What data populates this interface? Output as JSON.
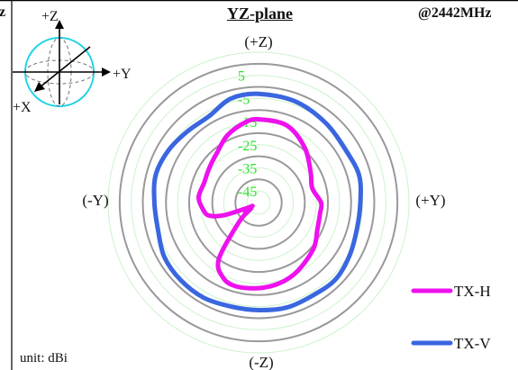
{
  "header": {
    "title": "YZ-plane",
    "frequency": "@2442MHz",
    "unit": "unit: dBi",
    "left_edge_fragment": "z"
  },
  "axis_icon": {
    "plus_z": "+Z",
    "plus_y": "+Y",
    "plus_x": "+X",
    "sphere_color": "#22d3e6"
  },
  "chart_data": {
    "type": "polar-line",
    "title": "YZ-plane",
    "unit": "dBi",
    "direction_labels": {
      "top": "(+Z)",
      "bottom": "(-Z)",
      "left": "(-Y)",
      "right": "(+Y)"
    },
    "radial_ticks": [
      "5",
      "-5",
      "-15",
      "-25",
      "-35",
      "-45"
    ],
    "radial_tick_values": [
      5,
      -5,
      -15,
      -25,
      -35,
      -45
    ],
    "r_min": -50,
    "r_max": 15,
    "angle_unit": "degrees clockwise from +Z",
    "colors": {
      "major_ring": "#999999",
      "minor_ring": "#ccf2cc",
      "tick_label": "#2ee02e"
    },
    "series": [
      {
        "name": "TX-H",
        "color": "#ee11ee",
        "points": [
          [
            0,
            -14
          ],
          [
            20,
            -14.5
          ],
          [
            40,
            -19
          ],
          [
            60,
            -24
          ],
          [
            75,
            -26
          ],
          [
            90,
            -23
          ],
          [
            100,
            -23
          ],
          [
            115,
            -22
          ],
          [
            130,
            -19
          ],
          [
            150,
            -16
          ],
          [
            165,
            -14
          ],
          [
            180,
            -13
          ],
          [
            195,
            -12.5
          ],
          [
            205,
            -14
          ],
          [
            215,
            -20
          ],
          [
            225,
            -38
          ],
          [
            232,
            -46
          ],
          [
            236,
            -43
          ],
          [
            240,
            -47
          ],
          [
            245,
            -44
          ],
          [
            250,
            -34
          ],
          [
            255,
            -28
          ],
          [
            262,
            -26
          ],
          [
            275,
            -24
          ],
          [
            290,
            -25
          ],
          [
            305,
            -24
          ],
          [
            320,
            -22
          ],
          [
            335,
            -18
          ],
          [
            350,
            -15
          ],
          [
            360,
            -14
          ]
        ]
      },
      {
        "name": "TX-V",
        "color": "#3a66e0",
        "points": [
          [
            0,
            -3
          ],
          [
            20,
            -3.5
          ],
          [
            40,
            -5
          ],
          [
            60,
            -6
          ],
          [
            75,
            -5
          ],
          [
            90,
            -6
          ],
          [
            105,
            -6
          ],
          [
            120,
            -4.5
          ],
          [
            135,
            -3
          ],
          [
            150,
            -3.5
          ],
          [
            165,
            -3
          ],
          [
            180,
            -3.5
          ],
          [
            195,
            -3.5
          ],
          [
            210,
            -2.5
          ],
          [
            225,
            -2.5
          ],
          [
            240,
            -3
          ],
          [
            255,
            -5
          ],
          [
            270,
            -5
          ],
          [
            285,
            -4
          ],
          [
            300,
            -5
          ],
          [
            315,
            -6.5
          ],
          [
            330,
            -7
          ],
          [
            345,
            -3.5
          ],
          [
            360,
            -3
          ]
        ]
      }
    ]
  }
}
